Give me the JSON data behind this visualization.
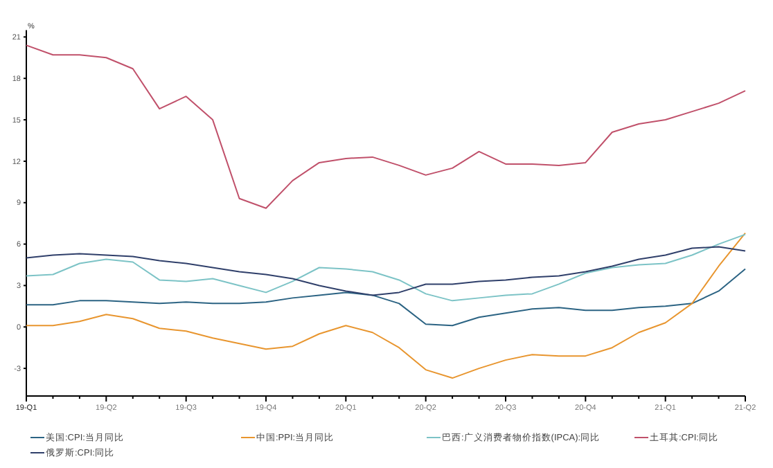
{
  "chart_data": {
    "type": "line",
    "ylabel": "%",
    "categories": [
      "19-Q1",
      null,
      null,
      "19-Q2",
      null,
      null,
      "19-Q3",
      null,
      null,
      "19-Q4",
      null,
      null,
      "20-Q1",
      null,
      null,
      "20-Q2",
      null,
      null,
      "20-Q3",
      null,
      null,
      "20-Q4",
      null,
      null,
      "21-Q1",
      null,
      null,
      "21-Q2"
    ],
    "ylim": [
      -5,
      21.5
    ],
    "yticks": [
      -3,
      0,
      3,
      6,
      9,
      12,
      15,
      18,
      21
    ],
    "grid": false,
    "legend": "bottom",
    "marker": "none",
    "line_style": "solid",
    "series": [
      {
        "name": "美国:CPI:当月同比",
        "color": "#2b6383",
        "values": [
          1.6,
          1.6,
          1.9,
          1.9,
          1.8,
          1.7,
          1.8,
          1.7,
          1.7,
          1.8,
          2.1,
          2.3,
          2.5,
          2.3,
          1.7,
          0.2,
          0.1,
          0.7,
          1.0,
          1.3,
          1.4,
          1.2,
          1.2,
          1.4,
          1.5,
          1.7,
          2.6,
          4.2
        ]
      },
      {
        "name": "中国:PPI:当月同比",
        "color": "#e8952e",
        "values": [
          0.1,
          0.1,
          0.4,
          0.9,
          0.6,
          -0.1,
          -0.3,
          -0.8,
          -1.2,
          -1.6,
          -1.4,
          -0.5,
          0.1,
          -0.4,
          -1.5,
          -3.1,
          -3.7,
          -3.0,
          -2.4,
          -2.0,
          -2.1,
          -2.1,
          -1.5,
          -0.4,
          0.3,
          1.7,
          4.4,
          6.8
        ]
      },
      {
        "name": "巴西:广义消费者物价指数(IPCA):同比",
        "color": "#7cc3c6",
        "values": [
          3.7,
          3.8,
          4.6,
          4.9,
          4.7,
          3.4,
          3.3,
          3.5,
          3.0,
          2.5,
          3.3,
          4.3,
          4.2,
          4.0,
          3.4,
          2.4,
          1.9,
          2.1,
          2.3,
          2.4,
          3.1,
          3.9,
          4.3,
          4.5,
          4.6,
          5.2,
          6.0,
          6.7
        ]
      },
      {
        "name": "土耳其:CPI:同比",
        "color": "#c0506a",
        "values": [
          20.4,
          19.7,
          19.7,
          19.5,
          18.7,
          15.8,
          16.7,
          15.0,
          9.3,
          8.6,
          10.6,
          11.9,
          12.2,
          12.3,
          11.7,
          11.0,
          11.5,
          12.7,
          11.8,
          11.8,
          11.7,
          11.9,
          14.1,
          14.7,
          15.0,
          15.6,
          16.2,
          17.1
        ]
      },
      {
        "name": "俄罗斯:CPI:同比",
        "color": "#2f3f6a",
        "values": [
          5.0,
          5.2,
          5.3,
          5.2,
          5.1,
          4.8,
          4.6,
          4.3,
          4.0,
          3.8,
          3.5,
          3.0,
          2.6,
          2.3,
          2.5,
          3.1,
          3.1,
          3.3,
          3.4,
          3.6,
          3.7,
          4.0,
          4.4,
          4.9,
          5.2,
          5.7,
          5.8,
          5.5
        ]
      }
    ]
  }
}
